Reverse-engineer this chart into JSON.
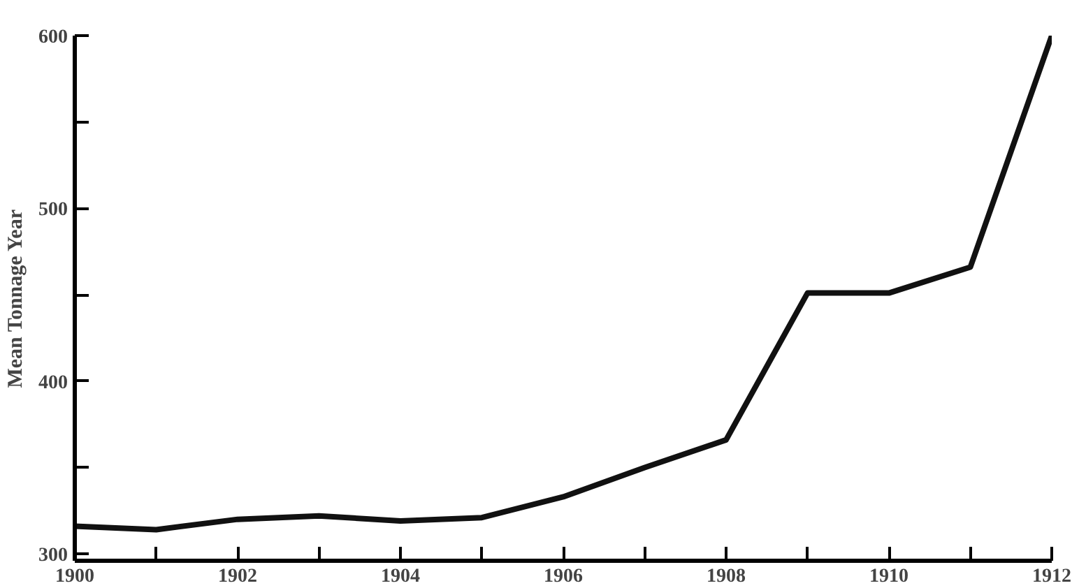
{
  "chart_data": {
    "type": "line",
    "ylabel": "Mean Tonnage Year",
    "x": [
      1900,
      1901,
      1902,
      1903,
      1904,
      1905,
      1906,
      1907,
      1908,
      1909,
      1910,
      1911,
      1912
    ],
    "series": [
      {
        "color": "#111111",
        "values": [
          316,
          314,
          320,
          322,
          319,
          321,
          333,
          350,
          366,
          451,
          451,
          466,
          600
        ]
      }
    ],
    "xlim": [
      1900,
      1912
    ],
    "xticks": [
      1900,
      {
        "value": 1901,
        "label": null
      },
      1902,
      {
        "value": 1903,
        "label": null
      },
      1904,
      {
        "value": 1905,
        "label": null
      },
      1906,
      {
        "value": 1907,
        "label": null
      },
      1908,
      {
        "value": 1909,
        "label": null
      },
      1910,
      {
        "value": 1911,
        "label": null
      },
      1912
    ],
    "ylim": [
      296,
      600
    ],
    "yticks": [
      300,
      {
        "value": 350,
        "label": null
      },
      400,
      {
        "value": 450,
        "label": null
      },
      500,
      {
        "value": 550,
        "label": null
      },
      600
    ],
    "grid": false,
    "marker": "none",
    "line_style": "solid"
  }
}
